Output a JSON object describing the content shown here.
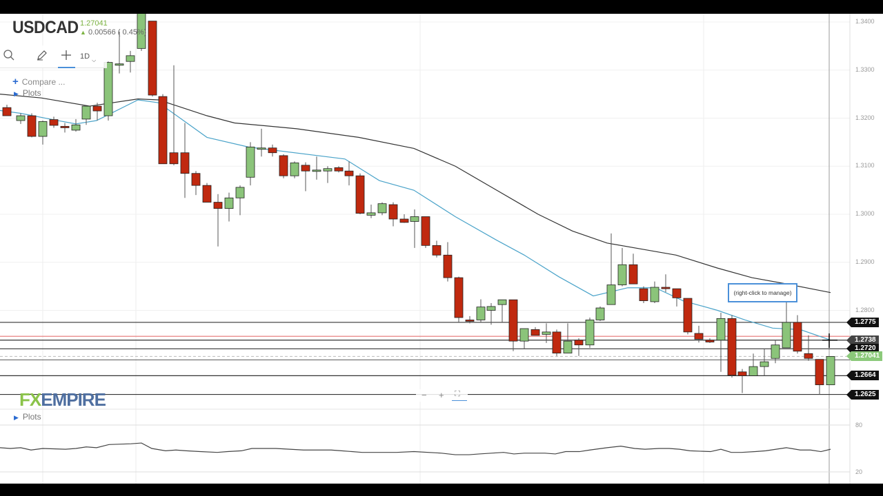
{
  "header": {
    "symbol": "USDCAD",
    "last_price": "1.27041",
    "change": "0.00566 ( 0.45%)",
    "change_direction_icon": "up-arrow-icon"
  },
  "toolbar": {
    "search_icon": "search-icon",
    "draw_icon": "pencil-icon",
    "crosshair_icon": "crosshair-icon",
    "interval": "1D",
    "interval_dropdown_icon": "chevron-down-icon"
  },
  "panel": {
    "compare_label": "Compare ...",
    "plots_label": "Plots",
    "lower_plots_label": "Plots"
  },
  "logo": {
    "fx": "FX",
    "empire": "EMPIRE"
  },
  "zoom_controls": {
    "minus": "−",
    "plus": "+",
    "fit": "⛶"
  },
  "annotation": "(right-click to manage)",
  "price_axis": {
    "ticks": [
      "1.3400",
      "1.3300",
      "1.3200",
      "1.3100",
      "1.3000",
      "1.2900",
      "1.2800"
    ],
    "level_tags": [
      {
        "label": "1.2775",
        "style": "black"
      },
      {
        "label": "1.2738",
        "style": "grey"
      },
      {
        "label": "1.2720",
        "style": "black"
      },
      {
        "label": "1.27041",
        "style": "green"
      },
      {
        "label": "1.2664",
        "style": "black"
      },
      {
        "label": "1.2625",
        "style": "black"
      }
    ]
  },
  "oscillator_axis": {
    "ticks": [
      "80",
      "20"
    ]
  },
  "colors": {
    "up_candle": "#8bc47a",
    "down_candle": "#c0290f",
    "ma_fast": "#4aa3c9",
    "ma_slow": "#333333",
    "red_level": "#e57373",
    "accent": "#2a6bd1"
  },
  "chart_data": {
    "type": "candlestick",
    "title": "USDCAD",
    "interval": "1D",
    "ylim": [
      1.26,
      1.342
    ],
    "price_ticks": [
      1.34,
      1.33,
      1.32,
      1.31,
      1.3,
      1.29,
      1.28
    ],
    "horizontal_levels": [
      1.2775,
      1.2738,
      1.272,
      1.27041,
      1.2664,
      1.2625
    ],
    "red_level": 1.2746,
    "candles": [
      {
        "x": 10,
        "o": 1.3222,
        "h": 1.3228,
        "l": 1.3208,
        "c": 1.3205
      },
      {
        "x": 30,
        "o": 1.3195,
        "h": 1.321,
        "l": 1.3188,
        "c": 1.3205
      },
      {
        "x": 46,
        "o": 1.3205,
        "h": 1.321,
        "l": 1.316,
        "c": 1.3162
      },
      {
        "x": 62,
        "o": 1.3162,
        "h": 1.3195,
        "l": 1.3145,
        "c": 1.3193
      },
      {
        "x": 78,
        "o": 1.3197,
        "h": 1.3203,
        "l": 1.318,
        "c": 1.3185
      },
      {
        "x": 94,
        "o": 1.3183,
        "h": 1.319,
        "l": 1.317,
        "c": 1.318
      },
      {
        "x": 110,
        "o": 1.3175,
        "h": 1.3198,
        "l": 1.3172,
        "c": 1.3186
      },
      {
        "x": 125,
        "o": 1.3198,
        "h": 1.3215,
        "l": 1.3186,
        "c": 1.3225
      },
      {
        "x": 141,
        "o": 1.3225,
        "h": 1.3232,
        "l": 1.3195,
        "c": 1.3215
      },
      {
        "x": 157,
        "o": 1.3205,
        "h": 1.3318,
        "l": 1.3195,
        "c": 1.3316
      },
      {
        "x": 173,
        "o": 1.3313,
        "h": 1.338,
        "l": 1.3293,
        "c": 1.3313
      },
      {
        "x": 189,
        "o": 1.3318,
        "h": 1.334,
        "l": 1.3295,
        "c": 1.333
      },
      {
        "x": 205,
        "o": 1.3345,
        "h": 1.342,
        "l": 1.334,
        "c": 1.342
      },
      {
        "x": 221,
        "o": 1.3402,
        "h": 1.3402,
        "l": 1.3245,
        "c": 1.3248
      },
      {
        "x": 236,
        "o": 1.3245,
        "h": 1.325,
        "l": 1.3105,
        "c": 1.3105
      },
      {
        "x": 252,
        "o": 1.3128,
        "h": 1.331,
        "l": 1.3102,
        "c": 1.3105
      },
      {
        "x": 268,
        "o": 1.3128,
        "h": 1.319,
        "l": 1.3034,
        "c": 1.3085
      },
      {
        "x": 284,
        "o": 1.3085,
        "h": 1.309,
        "l": 1.304,
        "c": 1.306
      },
      {
        "x": 300,
        "o": 1.306,
        "h": 1.3065,
        "l": 1.3025,
        "c": 1.3025
      },
      {
        "x": 316,
        "o": 1.3025,
        "h": 1.3042,
        "l": 1.2933,
        "c": 1.3012
      },
      {
        "x": 332,
        "o": 1.3012,
        "h": 1.3045,
        "l": 1.2985,
        "c": 1.3034
      },
      {
        "x": 348,
        "o": 1.3034,
        "h": 1.306,
        "l": 1.2998,
        "c": 1.3056
      },
      {
        "x": 363,
        "o": 1.3077,
        "h": 1.315,
        "l": 1.306,
        "c": 1.314
      },
      {
        "x": 379,
        "o": 1.3138,
        "h": 1.3178,
        "l": 1.312,
        "c": 1.3138
      },
      {
        "x": 395,
        "o": 1.3138,
        "h": 1.3145,
        "l": 1.312,
        "c": 1.3128
      },
      {
        "x": 411,
        "o": 1.3122,
        "h": 1.3125,
        "l": 1.3075,
        "c": 1.308
      },
      {
        "x": 427,
        "o": 1.308,
        "h": 1.311,
        "l": 1.3075,
        "c": 1.3107
      },
      {
        "x": 443,
        "o": 1.3102,
        "h": 1.3108,
        "l": 1.3048,
        "c": 1.309
      },
      {
        "x": 459,
        "o": 1.309,
        "h": 1.312,
        "l": 1.3072,
        "c": 1.3092
      },
      {
        "x": 475,
        "o": 1.309,
        "h": 1.31,
        "l": 1.3065,
        "c": 1.3095
      },
      {
        "x": 491,
        "o": 1.3097,
        "h": 1.31,
        "l": 1.3087,
        "c": 1.309
      },
      {
        "x": 506,
        "o": 1.309,
        "h": 1.311,
        "l": 1.306,
        "c": 1.308
      },
      {
        "x": 522,
        "o": 1.308,
        "h": 1.3085,
        "l": 1.3,
        "c": 1.3002
      },
      {
        "x": 538,
        "o": 1.2998,
        "h": 1.302,
        "l": 1.2992,
        "c": 1.3003
      },
      {
        "x": 554,
        "o": 1.3003,
        "h": 1.3025,
        "l": 1.2998,
        "c": 1.3022
      },
      {
        "x": 570,
        "o": 1.302,
        "h": 1.3025,
        "l": 1.2975,
        "c": 1.299
      },
      {
        "x": 586,
        "o": 1.299,
        "h": 1.3,
        "l": 1.2982,
        "c": 1.2983
      },
      {
        "x": 601,
        "o": 1.2985,
        "h": 1.301,
        "l": 1.293,
        "c": 1.2995
      },
      {
        "x": 617,
        "o": 1.2995,
        "h": 1.2995,
        "l": 1.293,
        "c": 1.2935
      },
      {
        "x": 633,
        "o": 1.2935,
        "h": 1.2945,
        "l": 1.291,
        "c": 1.2915
      },
      {
        "x": 649,
        "o": 1.2915,
        "h": 1.2942,
        "l": 1.286,
        "c": 1.2868
      },
      {
        "x": 665,
        "o": 1.2868,
        "h": 1.287,
        "l": 1.2775,
        "c": 1.2785
      },
      {
        "x": 681,
        "o": 1.278,
        "h": 1.2788,
        "l": 1.2773,
        "c": 1.2778
      },
      {
        "x": 697,
        "o": 1.278,
        "h": 1.2823,
        "l": 1.2775,
        "c": 1.2807
      },
      {
        "x": 712,
        "o": 1.28,
        "h": 1.2815,
        "l": 1.277,
        "c": 1.2808
      },
      {
        "x": 728,
        "o": 1.2812,
        "h": 1.2822,
        "l": 1.2775,
        "c": 1.2822
      },
      {
        "x": 744,
        "o": 1.2822,
        "h": 1.2822,
        "l": 1.2715,
        "c": 1.2736
      },
      {
        "x": 760,
        "o": 1.2736,
        "h": 1.276,
        "l": 1.272,
        "c": 1.2762
      },
      {
        "x": 776,
        "o": 1.276,
        "h": 1.2765,
        "l": 1.2748,
        "c": 1.2748
      },
      {
        "x": 792,
        "o": 1.275,
        "h": 1.2773,
        "l": 1.2732,
        "c": 1.2755
      },
      {
        "x": 807,
        "o": 1.2755,
        "h": 1.276,
        "l": 1.2705,
        "c": 1.2711
      },
      {
        "x": 823,
        "o": 1.2711,
        "h": 1.2773,
        "l": 1.2711,
        "c": 1.2736
      },
      {
        "x": 839,
        "o": 1.2738,
        "h": 1.2742,
        "l": 1.2705,
        "c": 1.2728
      },
      {
        "x": 855,
        "o": 1.2728,
        "h": 1.2785,
        "l": 1.2722,
        "c": 1.278
      },
      {
        "x": 870,
        "o": 1.278,
        "h": 1.2808,
        "l": 1.2778,
        "c": 1.2805
      },
      {
        "x": 886,
        "o": 1.2812,
        "h": 1.296,
        "l": 1.2812,
        "c": 1.2853
      },
      {
        "x": 902,
        "o": 1.2853,
        "h": 1.293,
        "l": 1.285,
        "c": 1.2895
      },
      {
        "x": 918,
        "o": 1.2895,
        "h": 1.2918,
        "l": 1.2855,
        "c": 1.2855
      },
      {
        "x": 933,
        "o": 1.2845,
        "h": 1.285,
        "l": 1.2815,
        "c": 1.282
      },
      {
        "x": 949,
        "o": 1.2818,
        "h": 1.286,
        "l": 1.2815,
        "c": 1.2848
      },
      {
        "x": 965,
        "o": 1.2848,
        "h": 1.2875,
        "l": 1.2838,
        "c": 1.2845
      },
      {
        "x": 981,
        "o": 1.2845,
        "h": 1.2845,
        "l": 1.2808,
        "c": 1.2826
      },
      {
        "x": 997,
        "o": 1.2825,
        "h": 1.2825,
        "l": 1.275,
        "c": 1.2755
      },
      {
        "x": 1013,
        "o": 1.2752,
        "h": 1.2768,
        "l": 1.2733,
        "c": 1.274
      },
      {
        "x": 1029,
        "o": 1.2738,
        "h": 1.2742,
        "l": 1.2732,
        "c": 1.2734
      },
      {
        "x": 1045,
        "o": 1.2738,
        "h": 1.2795,
        "l": 1.2672,
        "c": 1.2783
      },
      {
        "x": 1061,
        "o": 1.2783,
        "h": 1.279,
        "l": 1.266,
        "c": 1.2665
      },
      {
        "x": 1076,
        "o": 1.2672,
        "h": 1.2678,
        "l": 1.2628,
        "c": 1.2664
      },
      {
        "x": 1092,
        "o": 1.2664,
        "h": 1.271,
        "l": 1.2664,
        "c": 1.2683
      },
      {
        "x": 1108,
        "o": 1.2683,
        "h": 1.272,
        "l": 1.2664,
        "c": 1.2693
      },
      {
        "x": 1124,
        "o": 1.27,
        "h": 1.2738,
        "l": 1.269,
        "c": 1.2728
      },
      {
        "x": 1140,
        "o": 1.2722,
        "h": 1.2818,
        "l": 1.2722,
        "c": 1.2775
      },
      {
        "x": 1156,
        "o": 1.2775,
        "h": 1.279,
        "l": 1.271,
        "c": 1.2715
      },
      {
        "x": 1172,
        "o": 1.271,
        "h": 1.2748,
        "l": 1.2695,
        "c": 1.27
      },
      {
        "x": 1188,
        "o": 1.2698,
        "h": 1.2698,
        "l": 1.2625,
        "c": 1.2645
      },
      {
        "x": 1204,
        "o": 1.2645,
        "h": 1.2701,
        "l": 1.2645,
        "c": 1.27041
      }
    ],
    "ma_fast": [
      [
        0,
        1.3216
      ],
      [
        30,
        1.321
      ],
      [
        80,
        1.3196
      ],
      [
        110,
        1.3188
      ],
      [
        140,
        1.3195
      ],
      [
        200,
        1.3238
      ],
      [
        230,
        1.3232
      ],
      [
        300,
        1.316
      ],
      [
        360,
        1.314
      ],
      [
        500,
        1.3115
      ],
      [
        550,
        1.307
      ],
      [
        600,
        1.305
      ],
      [
        660,
        1.2995
      ],
      [
        720,
        1.2946
      ],
      [
        760,
        1.2915
      ],
      [
        810,
        1.287
      ],
      [
        860,
        1.283
      ],
      [
        910,
        1.2847
      ],
      [
        950,
        1.2847
      ],
      [
        990,
        1.282
      ],
      [
        1040,
        1.28
      ],
      [
        1080,
        1.278
      ],
      [
        1120,
        1.2763
      ],
      [
        1160,
        1.276
      ],
      [
        1204,
        1.2738
      ]
    ],
    "ma_slow": [
      [
        0,
        1.325
      ],
      [
        60,
        1.3242
      ],
      [
        130,
        1.3225
      ],
      [
        200,
        1.324
      ],
      [
        230,
        1.3238
      ],
      [
        300,
        1.3205
      ],
      [
        340,
        1.319
      ],
      [
        430,
        1.3178
      ],
      [
        520,
        1.316
      ],
      [
        600,
        1.3137
      ],
      [
        660,
        1.31
      ],
      [
        720,
        1.305
      ],
      [
        780,
        1.3
      ],
      [
        830,
        1.2965
      ],
      [
        880,
        1.294
      ],
      [
        940,
        1.2925
      ],
      [
        980,
        1.2915
      ],
      [
        1040,
        1.2888
      ],
      [
        1090,
        1.2868
      ],
      [
        1140,
        1.2855
      ],
      [
        1204,
        1.2837
      ]
    ],
    "oscillator": {
      "ylim": [
        20,
        80
      ],
      "points": [
        [
          0,
          51
        ],
        [
          15,
          50
        ],
        [
          30,
          51
        ],
        [
          45,
          48
        ],
        [
          62,
          50
        ],
        [
          95,
          49
        ],
        [
          110,
          50
        ],
        [
          125,
          52
        ],
        [
          140,
          51
        ],
        [
          158,
          55
        ],
        [
          190,
          56
        ],
        [
          205,
          57
        ],
        [
          220,
          50
        ],
        [
          240,
          47
        ],
        [
          255,
          48
        ],
        [
          270,
          47
        ],
        [
          290,
          46
        ],
        [
          315,
          45
        ],
        [
          330,
          46
        ],
        [
          350,
          47
        ],
        [
          365,
          50
        ],
        [
          400,
          50
        ],
        [
          420,
          49
        ],
        [
          440,
          48
        ],
        [
          460,
          48
        ],
        [
          480,
          48
        ],
        [
          495,
          47
        ],
        [
          510,
          46
        ],
        [
          525,
          45
        ],
        [
          550,
          45
        ],
        [
          575,
          45
        ],
        [
          600,
          46
        ],
        [
          640,
          44
        ],
        [
          660,
          42
        ],
        [
          680,
          42
        ],
        [
          695,
          43
        ],
        [
          730,
          45
        ],
        [
          745,
          43
        ],
        [
          760,
          44
        ],
        [
          790,
          44
        ],
        [
          805,
          43
        ],
        [
          820,
          46
        ],
        [
          840,
          46
        ],
        [
          855,
          48
        ],
        [
          880,
          51
        ],
        [
          900,
          53
        ],
        [
          920,
          50
        ],
        [
          935,
          49
        ],
        [
          955,
          50
        ],
        [
          970,
          50
        ],
        [
          985,
          49
        ],
        [
          1000,
          47
        ],
        [
          1030,
          46
        ],
        [
          1045,
          49
        ],
        [
          1060,
          45
        ],
        [
          1075,
          45
        ],
        [
          1095,
          46
        ],
        [
          1110,
          47
        ],
        [
          1140,
          51
        ],
        [
          1160,
          48
        ],
        [
          1175,
          48
        ],
        [
          1190,
          46
        ],
        [
          1204,
          49
        ]
      ]
    }
  }
}
